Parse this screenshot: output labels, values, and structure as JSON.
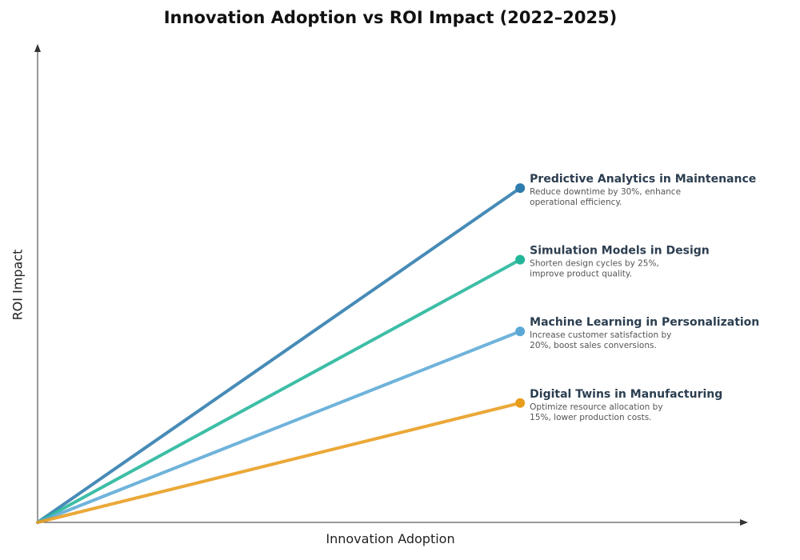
{
  "chart_data": {
    "type": "line",
    "title": "Innovation Adoption vs ROI Impact (2022–2025)",
    "xlabel": "Innovation Adoption",
    "ylabel": "ROI Impact",
    "grid": false,
    "xlim": [
      0,
      10
    ],
    "ylim": [
      0,
      10
    ],
    "series": [
      {
        "name": "Predictive Analytics in Maintenance",
        "description": [
          "Reduce downtime by 30%, enhance",
          "operational efficiency."
        ],
        "color": "#2e7bad",
        "points": [
          [
            0,
            0
          ],
          [
            6.8,
            7.0
          ]
        ]
      },
      {
        "name": "Simulation Models in Design",
        "description": [
          "Shorten design cycles by 25%,",
          "improve product quality."
        ],
        "color": "#22b59a",
        "points": [
          [
            0,
            0
          ],
          [
            6.8,
            5.5
          ]
        ]
      },
      {
        "name": "Machine Learning in Personalization",
        "description": [
          "Increase customer satisfaction by",
          "20%, boost sales conversions."
        ],
        "color": "#5ba8d6",
        "points": [
          [
            0,
            0
          ],
          [
            6.8,
            4.0
          ]
        ]
      },
      {
        "name": "Digital Twins in Manufacturing",
        "description": [
          "Optimize resource allocation by",
          "15%, lower production costs."
        ],
        "color": "#e89c1c",
        "points": [
          [
            0,
            0
          ],
          [
            6.8,
            2.5
          ]
        ]
      }
    ]
  }
}
